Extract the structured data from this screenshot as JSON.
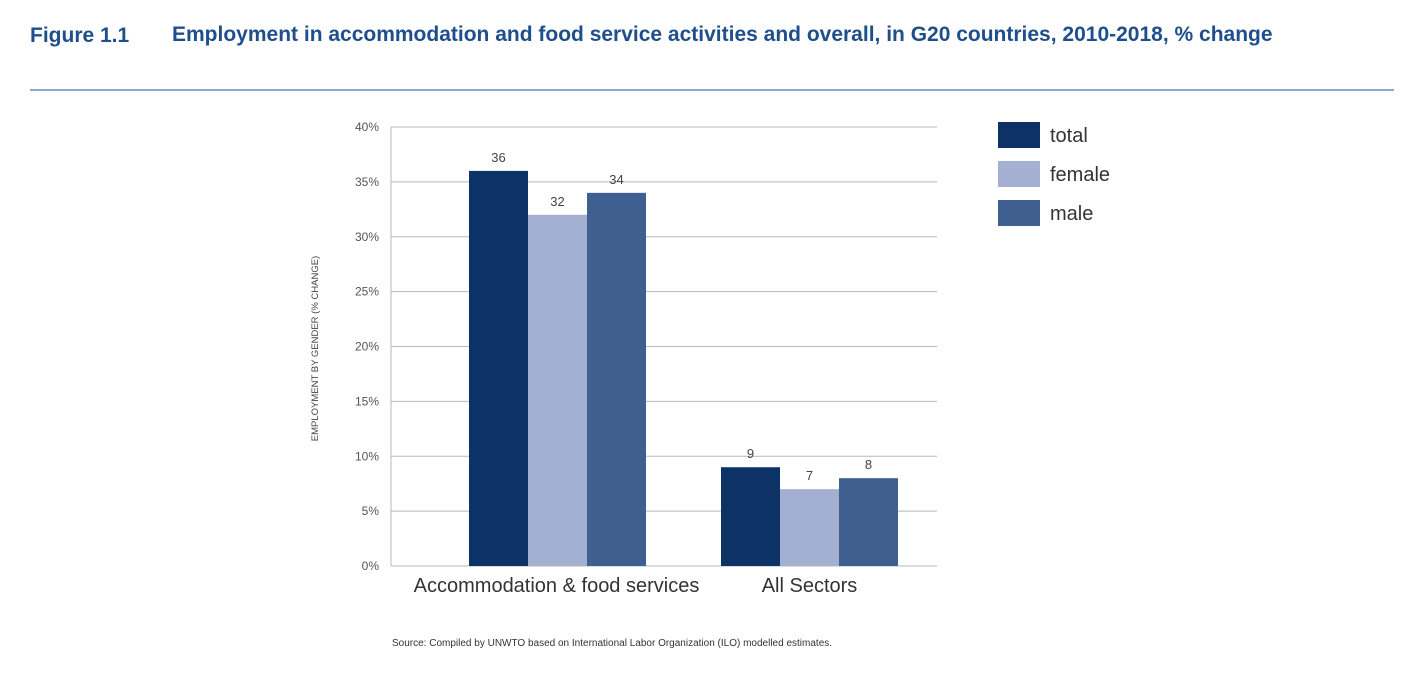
{
  "figure": {
    "label": "Figure 1.1",
    "title": "Employment in accommodation and food service activities and overall, in G20 countries, 2010-2018, % change"
  },
  "source": "Source: Compiled by UNWTO based on International Labor Organization (ILO) modelled estimates.",
  "chart_data": {
    "type": "bar",
    "categories": [
      "Accommodation & food services",
      "All Sectors"
    ],
    "series": [
      {
        "name": "total",
        "values": [
          36,
          9
        ],
        "color": "#0d3366"
      },
      {
        "name": "female",
        "values": [
          32,
          7
        ],
        "color": "#a4b0d2"
      },
      {
        "name": "male",
        "values": [
          34,
          8
        ],
        "color": "#3e5f8f"
      }
    ],
    "ylabel": "EMPLOYMENT BY GENDER (% CHANGE)",
    "ylim": [
      0,
      40
    ],
    "yticks": [
      "0%",
      "5%",
      "10%",
      "15%",
      "20%",
      "25%",
      "30%",
      "35%",
      "40%"
    ],
    "grid": true,
    "legend": "top-right",
    "data_labels": true
  }
}
